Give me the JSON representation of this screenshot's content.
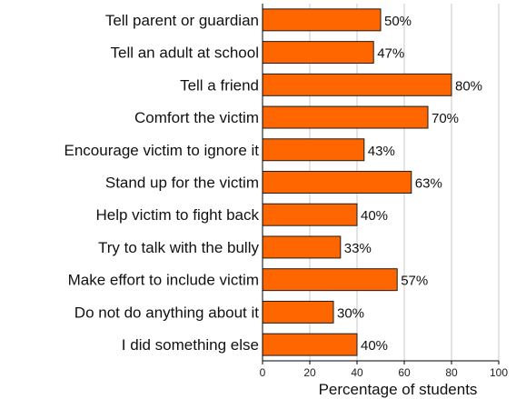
{
  "chart_data": {
    "type": "bar",
    "orientation": "horizontal",
    "categories": [
      "Tell parent or guardian",
      "Tell an adult at school",
      "Tell a friend",
      "Comfort the victim",
      "Encourage victim to ignore it",
      "Stand up for the victim",
      "Help victim to fight back",
      "Try to talk with the bully",
      "Make effort to include victim",
      "Do not do anything about it",
      "I did something else"
    ],
    "values": [
      50,
      47,
      80,
      70,
      43,
      63,
      40,
      33,
      57,
      30,
      40
    ],
    "value_labels": [
      "50%",
      "47%",
      "80%",
      "70%",
      "43%",
      "63%",
      "40%",
      "33%",
      "57%",
      "30%",
      "40%"
    ],
    "title": "",
    "xlabel": "Percentage of students",
    "ylabel": "",
    "xlim": [
      0,
      100
    ],
    "xticks": [
      0,
      20,
      40,
      60,
      80,
      100
    ],
    "grid": "vertical",
    "bar_color": "#ff6600",
    "bar_edge_color": "#1a1a1a",
    "grid_color": "#c8c8c8"
  }
}
